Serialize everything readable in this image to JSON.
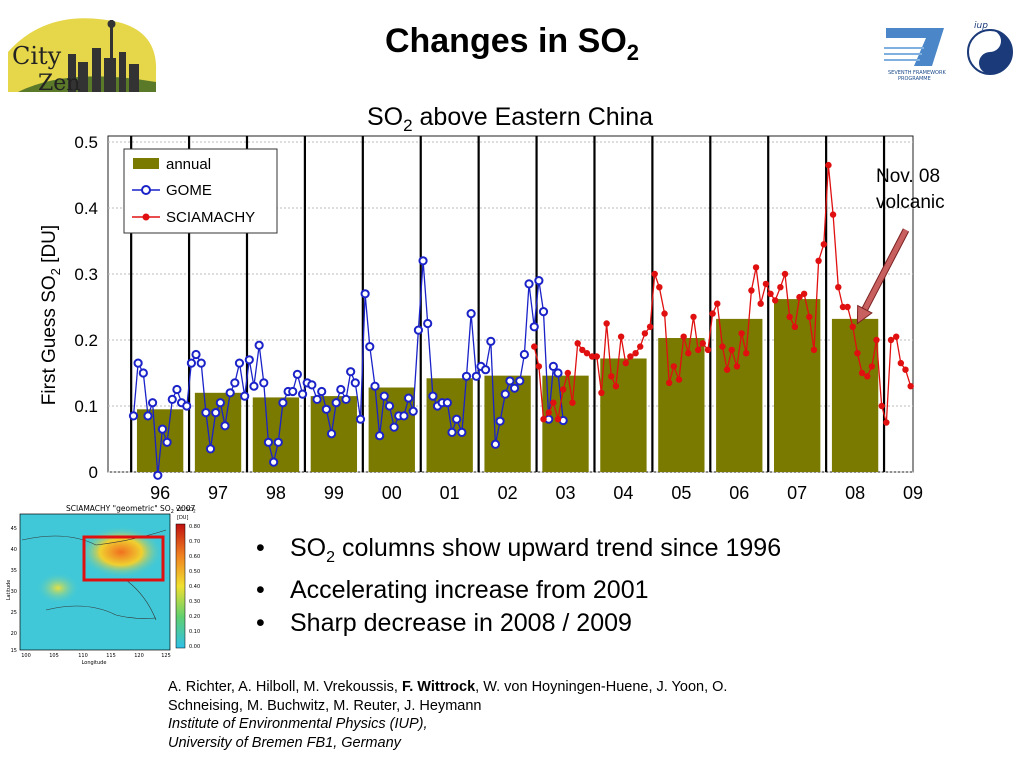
{
  "slide": {
    "title_main": "Changes in SO",
    "title_sub": "2"
  },
  "logos": {
    "left_line1": "City",
    "left_line2": "Zen",
    "right_text1": "SEVENTH FRAMEWORK",
    "right_text2": "PROGRAMME",
    "right_text3": "iup"
  },
  "chart_data": {
    "type": "line",
    "title_main": "SO",
    "title_sub": "2",
    "title_rest": " above Eastern China",
    "ylabel_main": "First Guess SO",
    "ylabel_sub": "2",
    "ylabel_rest": " [DU]",
    "ylim": [
      0,
      0.5
    ],
    "yticks": [
      "0",
      "0.1",
      "0.2",
      "0.3",
      "0.4",
      "0.5"
    ],
    "xlim": [
      1995.6,
      2009.5
    ],
    "xticks": [
      {
        "label": "96",
        "x": 1996.5
      },
      {
        "label": "97",
        "x": 1997.5
      },
      {
        "label": "98",
        "x": 1998.5
      },
      {
        "label": "99",
        "x": 1999.5
      },
      {
        "label": "00",
        "x": 2000.5
      },
      {
        "label": "01",
        "x": 2001.5
      },
      {
        "label": "02",
        "x": 2002.5
      },
      {
        "label": "03",
        "x": 2003.5
      },
      {
        "label": "04",
        "x": 2004.5
      },
      {
        "label": "05",
        "x": 2005.5
      },
      {
        "label": "06",
        "x": 2006.5
      },
      {
        "label": "07",
        "x": 2007.5
      },
      {
        "label": "08",
        "x": 2008.5
      },
      {
        "label": "09",
        "x": 2009.5
      }
    ],
    "grid": true,
    "legend_position": "top-left",
    "annual": {
      "name": "annual",
      "color": "#7a7a00",
      "years": [
        1996,
        1997,
        1998,
        1999,
        2000,
        2001,
        2002,
        2003,
        2004,
        2005,
        2006,
        2007,
        2008
      ],
      "values": [
        0.095,
        0.12,
        0.113,
        0.115,
        0.128,
        0.142,
        0.146,
        0.146,
        0.172,
        0.203,
        0.232,
        0.262,
        0.232
      ]
    },
    "series": [
      {
        "name": "GOME",
        "color": "#1a22c8",
        "x": [
          1996.04,
          1996.12,
          1996.21,
          1996.29,
          1996.37,
          1996.46,
          1996.54,
          1996.62,
          1996.71,
          1996.79,
          1996.87,
          1996.96,
          1997.04,
          1997.12,
          1997.21,
          1997.29,
          1997.37,
          1997.46,
          1997.54,
          1997.62,
          1997.71,
          1997.79,
          1997.87,
          1997.96,
          1998.04,
          1998.12,
          1998.21,
          1998.29,
          1998.37,
          1998.46,
          1998.54,
          1998.62,
          1998.71,
          1998.79,
          1998.87,
          1998.96,
          1999.04,
          1999.12,
          1999.21,
          1999.29,
          1999.37,
          1999.46,
          1999.54,
          1999.62,
          1999.71,
          1999.79,
          1999.87,
          1999.96,
          2000.04,
          2000.12,
          2000.21,
          2000.29,
          2000.37,
          2000.46,
          2000.54,
          2000.62,
          2000.71,
          2000.79,
          2000.87,
          2000.96,
          2001.04,
          2001.12,
          2001.21,
          2001.29,
          2001.37,
          2001.46,
          2001.54,
          2001.62,
          2001.71,
          2001.79,
          2001.87,
          2001.96,
          2002.04,
          2002.12,
          2002.21,
          2002.29,
          2002.37,
          2002.46,
          2002.54,
          2002.62,
          2002.71,
          2002.79,
          2002.87,
          2002.96,
          2003.04,
          2003.12,
          2003.21,
          2003.29,
          2003.37,
          2003.46
        ],
        "values": [
          0.085,
          0.165,
          0.15,
          0.085,
          0.105,
          -0.005,
          0.065,
          0.045,
          0.11,
          0.125,
          0.105,
          0.1,
          0.165,
          0.178,
          0.165,
          0.09,
          0.035,
          0.09,
          0.105,
          0.07,
          0.12,
          0.135,
          0.165,
          0.115,
          0.17,
          0.13,
          0.192,
          0.135,
          0.045,
          0.015,
          0.045,
          0.105,
          0.122,
          0.122,
          0.148,
          0.118,
          0.135,
          0.132,
          0.11,
          0.122,
          0.095,
          0.058,
          0.105,
          0.125,
          0.11,
          0.152,
          0.135,
          0.08,
          0.27,
          0.19,
          0.13,
          0.055,
          0.115,
          0.1,
          0.068,
          0.085,
          0.085,
          0.112,
          0.092,
          0.215,
          0.32,
          0.225,
          0.115,
          0.1,
          0.105,
          0.105,
          0.06,
          0.08,
          0.06,
          0.145,
          0.24,
          0.145,
          0.16,
          0.155,
          0.198,
          0.042,
          0.077,
          0.118,
          0.138,
          0.127,
          0.138,
          0.178,
          0.285,
          0.22,
          0.29,
          0.243,
          0.08,
          0.16,
          0.15,
          0.078
        ]
      },
      {
        "name": "SCIAMACHY",
        "color": "#e01010",
        "x": [
          2002.96,
          2003.04,
          2003.12,
          2003.21,
          2003.29,
          2003.37,
          2003.46,
          2003.54,
          2003.62,
          2003.71,
          2003.79,
          2003.87,
          2003.96,
          2004.04,
          2004.12,
          2004.21,
          2004.29,
          2004.37,
          2004.46,
          2004.54,
          2004.62,
          2004.71,
          2004.79,
          2004.87,
          2004.96,
          2005.04,
          2005.12,
          2005.21,
          2005.29,
          2005.37,
          2005.46,
          2005.54,
          2005.62,
          2005.71,
          2005.79,
          2005.87,
          2005.96,
          2006.04,
          2006.12,
          2006.21,
          2006.29,
          2006.37,
          2006.46,
          2006.54,
          2006.62,
          2006.71,
          2006.79,
          2006.87,
          2006.96,
          2007.04,
          2007.12,
          2007.21,
          2007.29,
          2007.37,
          2007.46,
          2007.54,
          2007.62,
          2007.71,
          2007.79,
          2007.87,
          2007.96,
          2008.04,
          2008.12,
          2008.21,
          2008.29,
          2008.37,
          2008.46,
          2008.54,
          2008.62,
          2008.71,
          2008.79,
          2008.87,
          2008.96,
          2009.04,
          2009.12,
          2009.21,
          2009.29,
          2009.37,
          2009.46
        ],
        "values": [
          0.19,
          0.16,
          0.08,
          0.09,
          0.105,
          0.08,
          0.125,
          0.15,
          0.105,
          0.195,
          0.185,
          0.18,
          0.175,
          0.175,
          0.12,
          0.225,
          0.145,
          0.13,
          0.205,
          0.165,
          0.175,
          0.18,
          0.19,
          0.21,
          0.22,
          0.3,
          0.28,
          0.24,
          0.135,
          0.16,
          0.14,
          0.205,
          0.18,
          0.235,
          0.185,
          0.195,
          0.185,
          0.24,
          0.255,
          0.19,
          0.155,
          0.185,
          0.16,
          0.21,
          0.18,
          0.275,
          0.31,
          0.255,
          0.285,
          0.27,
          0.26,
          0.28,
          0.3,
          0.235,
          0.22,
          0.265,
          0.27,
          0.235,
          0.185,
          0.32,
          0.345,
          0.465,
          0.39,
          0.28,
          0.25,
          0.25,
          0.22,
          0.18,
          0.15,
          0.145,
          0.16,
          0.2,
          0.1,
          0.075,
          0.2,
          0.205,
          0.165,
          0.155,
          0.13
        ]
      }
    ],
    "annotation": {
      "text_line1": "Nov. 08",
      "text_line2": "volcanic",
      "arrow_color": "#c86060",
      "target_x": 2008.54,
      "target_y": 0.225
    },
    "legend": [
      "annual",
      "GOME",
      "SCIAMACHY"
    ]
  },
  "inset_map": {
    "title": "SCIAMACHY \"geometric\" SO",
    "title_sub": "2",
    "title_year": " 2007",
    "colorbar_title": "VC SO",
    "colorbar_sub": "2",
    "colorbar_unit": "[DU]",
    "colorbar_ticks": [
      "0.80",
      "0.70",
      "0.60",
      "0.50",
      "0.40",
      "0.30",
      "0.20",
      "0.10",
      "0.00"
    ],
    "lat_label": "Latitude",
    "lon_label": "Longitude",
    "lat_ticks": [
      "45",
      "40",
      "35",
      "30",
      "25",
      "20",
      "15"
    ],
    "lon_ticks": [
      "100",
      "105",
      "110",
      "115",
      "120",
      "125"
    ],
    "box_color": "#e01010"
  },
  "bullets": [
    {
      "main": "SO",
      "sub": "2",
      "rest": " columns show upward trend since 1996"
    },
    {
      "main": "Accelerating increase from 2001",
      "sub": "",
      "rest": ""
    },
    {
      "main": "Sharp decrease in 2008 / 2009",
      "sub": "",
      "rest": ""
    }
  ],
  "credits": {
    "authors_a": "A. Richter, A. Hilboll, M. Vrekoussis, ",
    "authors_bold": "F. Wittrock",
    "authors_b": ", W. von Hoyningen-Huene, J. Yoon, O.",
    "authors_c": "Schneising, M. Buchwitz, M. Reuter, J. Heymann",
    "institute": "Institute of Environmental Physics (IUP),",
    "university": "University of Bremen FB1, Germany"
  }
}
